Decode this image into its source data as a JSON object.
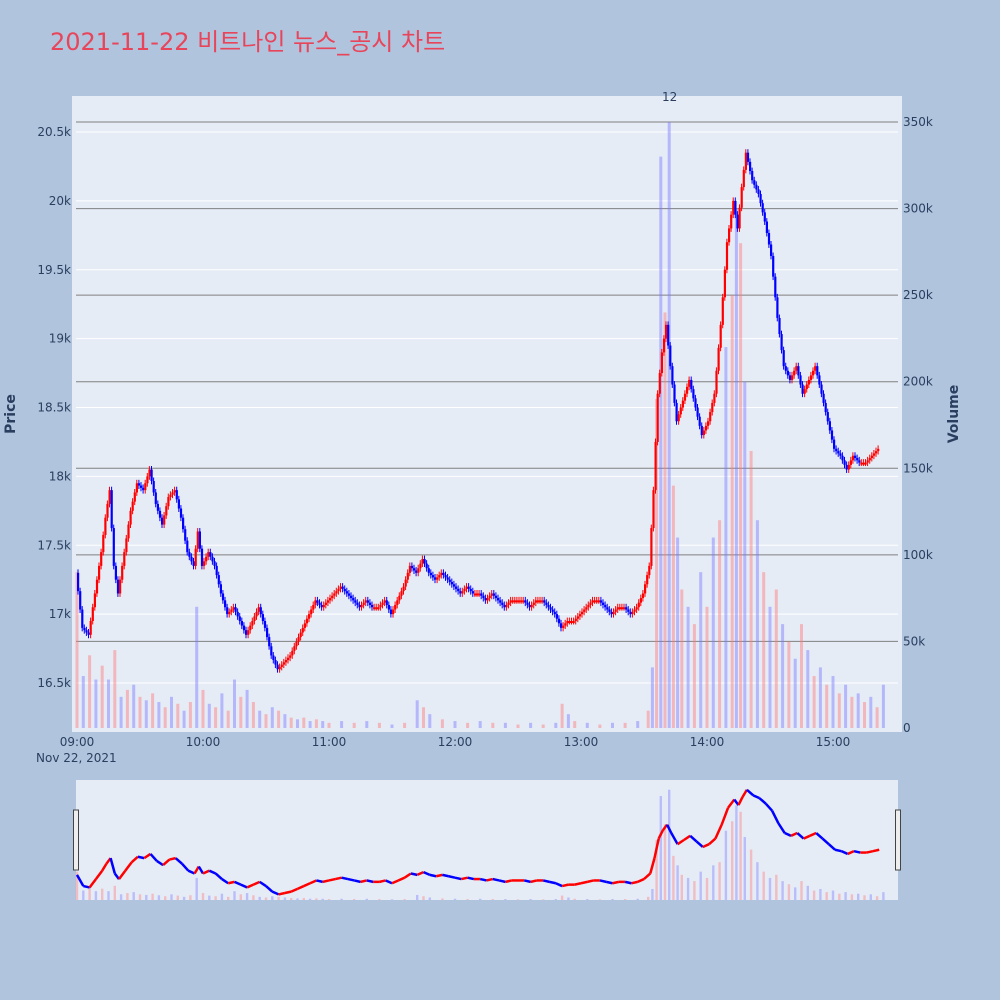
{
  "chart_data": {
    "type": "candlestick",
    "title": "2021-11-22 비트나인 뉴스_공시 차트",
    "title_color": "#e8445a",
    "price_axis_label": "Price",
    "volume_axis_label": "Volume",
    "date_label": "Nov 22, 2021",
    "annotation": "12",
    "x_ticks": [
      "09:00",
      "10:00",
      "11:00",
      "12:00",
      "13:00",
      "14:00",
      "15:00"
    ],
    "price_ticks": [
      "16.5k",
      "17k",
      "17.5k",
      "18k",
      "18.5k",
      "19k",
      "19.5k",
      "20k",
      "20.5k"
    ],
    "volume_ticks": [
      "0",
      "50k",
      "100k",
      "150k",
      "200k",
      "250k",
      "300k",
      "350k"
    ],
    "price_range": [
      16200,
      20800
    ],
    "volume_range": [
      0,
      365000
    ],
    "time_range": [
      "09:00",
      "15:30"
    ],
    "up_color": "#ff0000",
    "down_color": "#0000ff",
    "price_path": [
      [
        "09:00",
        17300
      ],
      [
        "09:03",
        16900
      ],
      [
        "09:06",
        16850
      ],
      [
        "09:09",
        17150
      ],
      [
        "09:12",
        17450
      ],
      [
        "09:14",
        17700
      ],
      [
        "09:16",
        17900
      ],
      [
        "09:18",
        17350
      ],
      [
        "09:20",
        17150
      ],
      [
        "09:23",
        17450
      ],
      [
        "09:26",
        17750
      ],
      [
        "09:29",
        17950
      ],
      [
        "09:32",
        17900
      ],
      [
        "09:35",
        18050
      ],
      [
        "09:38",
        17800
      ],
      [
        "09:41",
        17650
      ],
      [
        "09:44",
        17850
      ],
      [
        "09:47",
        17900
      ],
      [
        "09:50",
        17700
      ],
      [
        "09:53",
        17450
      ],
      [
        "09:56",
        17350
      ],
      [
        "09:58",
        17600
      ],
      [
        "10:00",
        17350
      ],
      [
        "10:03",
        17450
      ],
      [
        "10:06",
        17350
      ],
      [
        "10:09",
        17150
      ],
      [
        "10:12",
        17000
      ],
      [
        "10:15",
        17050
      ],
      [
        "10:18",
        16950
      ],
      [
        "10:21",
        16850
      ],
      [
        "10:24",
        16950
      ],
      [
        "10:27",
        17050
      ],
      [
        "10:30",
        16900
      ],
      [
        "10:33",
        16700
      ],
      [
        "10:36",
        16600
      ],
      [
        "10:39",
        16650
      ],
      [
        "10:42",
        16700
      ],
      [
        "10:45",
        16800
      ],
      [
        "10:48",
        16900
      ],
      [
        "10:51",
        17000
      ],
      [
        "10:54",
        17100
      ],
      [
        "10:57",
        17050
      ],
      [
        "11:00",
        17100
      ],
      [
        "11:03",
        17150
      ],
      [
        "11:06",
        17200
      ],
      [
        "11:09",
        17150
      ],
      [
        "11:12",
        17100
      ],
      [
        "11:15",
        17050
      ],
      [
        "11:18",
        17100
      ],
      [
        "11:21",
        17050
      ],
      [
        "11:24",
        17050
      ],
      [
        "11:27",
        17100
      ],
      [
        "11:30",
        17000
      ],
      [
        "11:33",
        17100
      ],
      [
        "11:36",
        17200
      ],
      [
        "11:39",
        17350
      ],
      [
        "11:42",
        17300
      ],
      [
        "11:45",
        17400
      ],
      [
        "11:48",
        17300
      ],
      [
        "11:51",
        17250
      ],
      [
        "11:54",
        17300
      ],
      [
        "11:57",
        17250
      ],
      [
        "12:00",
        17200
      ],
      [
        "12:03",
        17150
      ],
      [
        "12:06",
        17200
      ],
      [
        "12:09",
        17150
      ],
      [
        "12:12",
        17150
      ],
      [
        "12:15",
        17100
      ],
      [
        "12:18",
        17150
      ],
      [
        "12:21",
        17100
      ],
      [
        "12:24",
        17050
      ],
      [
        "12:27",
        17100
      ],
      [
        "12:30",
        17100
      ],
      [
        "12:33",
        17100
      ],
      [
        "12:36",
        17050
      ],
      [
        "12:39",
        17100
      ],
      [
        "12:42",
        17100
      ],
      [
        "12:45",
        17050
      ],
      [
        "12:48",
        17000
      ],
      [
        "12:51",
        16900
      ],
      [
        "12:54",
        16950
      ],
      [
        "12:57",
        16950
      ],
      [
        "13:00",
        17000
      ],
      [
        "13:03",
        17050
      ],
      [
        "13:06",
        17100
      ],
      [
        "13:09",
        17100
      ],
      [
        "13:12",
        17050
      ],
      [
        "13:15",
        17000
      ],
      [
        "13:18",
        17050
      ],
      [
        "13:21",
        17050
      ],
      [
        "13:24",
        17000
      ],
      [
        "13:27",
        17050
      ],
      [
        "13:30",
        17150
      ],
      [
        "13:33",
        17350
      ],
      [
        "13:35",
        17900
      ],
      [
        "13:37",
        18600
      ],
      [
        "13:39",
        18900
      ],
      [
        "13:41",
        19100
      ],
      [
        "13:43",
        18800
      ],
      [
        "13:46",
        18400
      ],
      [
        "13:49",
        18550
      ],
      [
        "13:52",
        18700
      ],
      [
        "13:55",
        18500
      ],
      [
        "13:58",
        18300
      ],
      [
        "14:01",
        18400
      ],
      [
        "14:04",
        18600
      ],
      [
        "14:07",
        19100
      ],
      [
        "14:10",
        19700
      ],
      [
        "14:13",
        20000
      ],
      [
        "14:15",
        19800
      ],
      [
        "14:17",
        20100
      ],
      [
        "14:19",
        20350
      ],
      [
        "14:22",
        20150
      ],
      [
        "14:25",
        20050
      ],
      [
        "14:28",
        19850
      ],
      [
        "14:31",
        19600
      ],
      [
        "14:34",
        19150
      ],
      [
        "14:37",
        18800
      ],
      [
        "14:40",
        18700
      ],
      [
        "14:43",
        18800
      ],
      [
        "14:46",
        18600
      ],
      [
        "14:49",
        18700
      ],
      [
        "14:52",
        18800
      ],
      [
        "14:55",
        18600
      ],
      [
        "14:58",
        18400
      ],
      [
        "15:01",
        18200
      ],
      [
        "15:04",
        18150
      ],
      [
        "15:07",
        18050
      ],
      [
        "15:10",
        18150
      ],
      [
        "15:13",
        18100
      ],
      [
        "15:16",
        18100
      ],
      [
        "15:19",
        18150
      ],
      [
        "15:22",
        18200
      ]
    ],
    "volume_bars": [
      [
        "09:00",
        90000
      ],
      [
        "09:03",
        30000
      ],
      [
        "09:06",
        42000
      ],
      [
        "09:09",
        28000
      ],
      [
        "09:12",
        36000
      ],
      [
        "09:15",
        28000
      ],
      [
        "09:18",
        45000
      ],
      [
        "09:21",
        18000
      ],
      [
        "09:24",
        22000
      ],
      [
        "09:27",
        25000
      ],
      [
        "09:30",
        18000
      ],
      [
        "09:33",
        16000
      ],
      [
        "09:36",
        20000
      ],
      [
        "09:39",
        15000
      ],
      [
        "09:42",
        12000
      ],
      [
        "09:45",
        18000
      ],
      [
        "09:48",
        14000
      ],
      [
        "09:51",
        10000
      ],
      [
        "09:54",
        15000
      ],
      [
        "09:57",
        70000
      ],
      [
        "10:00",
        22000
      ],
      [
        "10:03",
        14000
      ],
      [
        "10:06",
        12000
      ],
      [
        "10:09",
        20000
      ],
      [
        "10:12",
        10000
      ],
      [
        "10:15",
        28000
      ],
      [
        "10:18",
        18000
      ],
      [
        "10:21",
        22000
      ],
      [
        "10:24",
        15000
      ],
      [
        "10:27",
        10000
      ],
      [
        "10:30",
        8000
      ],
      [
        "10:33",
        12000
      ],
      [
        "10:36",
        10000
      ],
      [
        "10:39",
        8000
      ],
      [
        "10:42",
        6000
      ],
      [
        "10:45",
        5000
      ],
      [
        "10:48",
        6000
      ],
      [
        "10:51",
        4000
      ],
      [
        "10:54",
        5000
      ],
      [
        "10:57",
        4000
      ],
      [
        "11:00",
        3000
      ],
      [
        "11:06",
        4000
      ],
      [
        "11:12",
        3000
      ],
      [
        "11:18",
        4000
      ],
      [
        "11:24",
        3000
      ],
      [
        "11:30",
        2000
      ],
      [
        "11:36",
        3000
      ],
      [
        "11:42",
        16000
      ],
      [
        "11:45",
        12000
      ],
      [
        "11:48",
        8000
      ],
      [
        "11:54",
        5000
      ],
      [
        "12:00",
        4000
      ],
      [
        "12:06",
        3000
      ],
      [
        "12:12",
        4000
      ],
      [
        "12:18",
        3000
      ],
      [
        "12:24",
        3000
      ],
      [
        "12:30",
        2000
      ],
      [
        "12:36",
        3000
      ],
      [
        "12:42",
        2000
      ],
      [
        "12:48",
        3000
      ],
      [
        "12:51",
        14000
      ],
      [
        "12:54",
        8000
      ],
      [
        "12:57",
        4000
      ],
      [
        "13:03",
        3000
      ],
      [
        "13:09",
        2000
      ],
      [
        "13:15",
        3000
      ],
      [
        "13:21",
        3000
      ],
      [
        "13:27",
        4000
      ],
      [
        "13:32",
        10000
      ],
      [
        "13:34",
        35000
      ],
      [
        "13:36",
        190000
      ],
      [
        "13:38",
        330000
      ],
      [
        "13:40",
        240000
      ],
      [
        "13:42",
        350000
      ],
      [
        "13:44",
        140000
      ],
      [
        "13:46",
        110000
      ],
      [
        "13:48",
        80000
      ],
      [
        "13:51",
        70000
      ],
      [
        "13:54",
        60000
      ],
      [
        "13:57",
        90000
      ],
      [
        "14:00",
        70000
      ],
      [
        "14:03",
        110000
      ],
      [
        "14:06",
        120000
      ],
      [
        "14:09",
        220000
      ],
      [
        "14:12",
        250000
      ],
      [
        "14:14",
        300000
      ],
      [
        "14:16",
        280000
      ],
      [
        "14:18",
        200000
      ],
      [
        "14:21",
        160000
      ],
      [
        "14:24",
        120000
      ],
      [
        "14:27",
        90000
      ],
      [
        "14:30",
        70000
      ],
      [
        "14:33",
        80000
      ],
      [
        "14:36",
        60000
      ],
      [
        "14:39",
        50000
      ],
      [
        "14:42",
        40000
      ],
      [
        "14:45",
        60000
      ],
      [
        "14:48",
        45000
      ],
      [
        "14:51",
        30000
      ],
      [
        "14:54",
        35000
      ],
      [
        "14:57",
        25000
      ],
      [
        "15:00",
        30000
      ],
      [
        "15:03",
        20000
      ],
      [
        "15:06",
        25000
      ],
      [
        "15:09",
        18000
      ],
      [
        "15:12",
        20000
      ],
      [
        "15:15",
        15000
      ],
      [
        "15:18",
        18000
      ],
      [
        "15:21",
        12000
      ],
      [
        "15:24",
        25000
      ]
    ],
    "range_slider": true,
    "horizontal_gridlines_color": "#808080"
  }
}
